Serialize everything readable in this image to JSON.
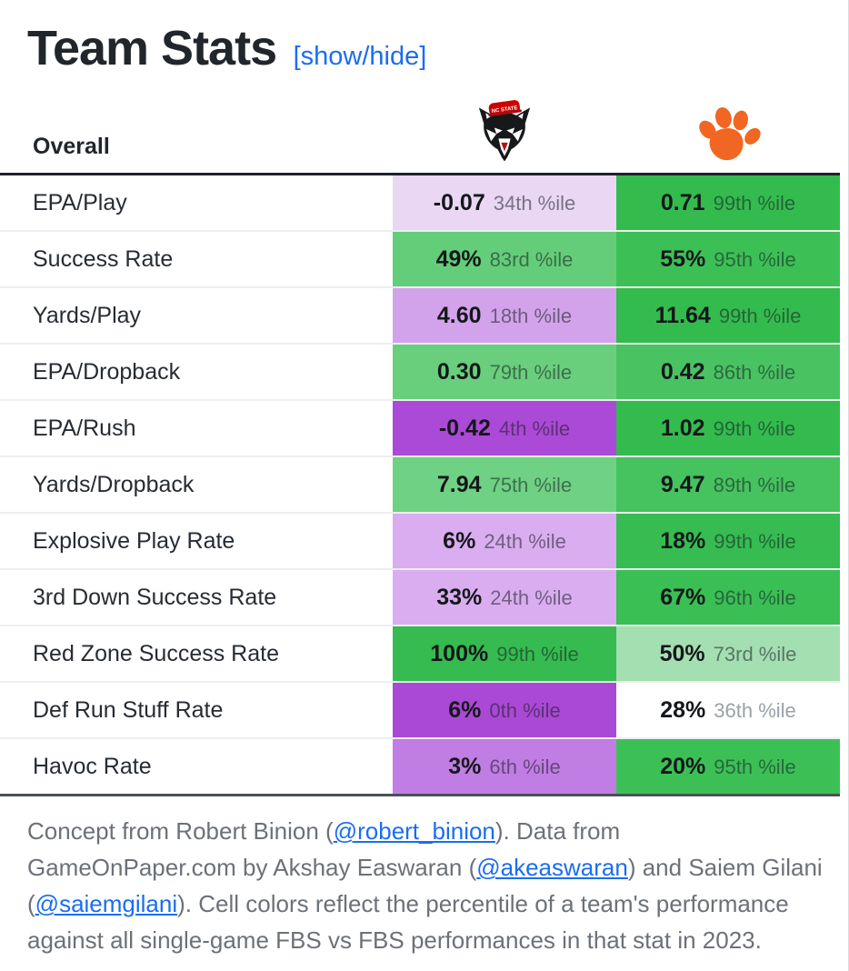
{
  "title": {
    "text": "Team Stats",
    "toggle": "[show/hide]"
  },
  "colors": {
    "link_blue": "#1a6df2",
    "header_border": "#1e2228",
    "footer_gray": "#6c7178",
    "clemson_orange": "#f16622",
    "ncstate_red": "#cc0000"
  },
  "table": {
    "header": {
      "label": "Overall",
      "team1_logo": "nc-state-wolfpack",
      "team2_logo": "clemson-tiger-paw"
    },
    "rows": [
      {
        "label": "EPA/Play",
        "team1": {
          "value": "-0.07",
          "pct": "34th %ile",
          "bg": "#e9d7f4"
        },
        "team2": {
          "value": "0.71",
          "pct": "99th %ile",
          "bg": "#34bb4e"
        }
      },
      {
        "label": "Success Rate",
        "team1": {
          "value": "49%",
          "pct": "83rd %ile",
          "bg": "#64cd79"
        },
        "team2": {
          "value": "55%",
          "pct": "95th %ile",
          "bg": "#3cc056"
        }
      },
      {
        "label": "Yards/Play",
        "team1": {
          "value": "4.60",
          "pct": "18th %ile",
          "bg": "#d2a3ea"
        },
        "team2": {
          "value": "11.64",
          "pct": "99th %ile",
          "bg": "#34bb4e"
        }
      },
      {
        "label": "EPA/Dropback",
        "team1": {
          "value": "0.30",
          "pct": "79th %ile",
          "bg": "#69cf7d"
        },
        "team2": {
          "value": "0.42",
          "pct": "86th %ile",
          "bg": "#49c362"
        }
      },
      {
        "label": "EPA/Rush",
        "team1": {
          "value": "-0.42",
          "pct": "4th %ile",
          "bg": "#ab4ad7"
        },
        "team2": {
          "value": "1.02",
          "pct": "99th %ile",
          "bg": "#34bb4e"
        }
      },
      {
        "label": "Yards/Dropback",
        "team1": {
          "value": "7.94",
          "pct": "75th %ile",
          "bg": "#6fd183"
        },
        "team2": {
          "value": "9.47",
          "pct": "89th %ile",
          "bg": "#46c25f"
        }
      },
      {
        "label": "Explosive Play Rate",
        "team1": {
          "value": "6%",
          "pct": "24th %ile",
          "bg": "#d9adef"
        },
        "team2": {
          "value": "18%",
          "pct": "99th %ile",
          "bg": "#36bc50"
        }
      },
      {
        "label": "3rd Down Success Rate",
        "team1": {
          "value": "33%",
          "pct": "24th %ile",
          "bg": "#d9adef"
        },
        "team2": {
          "value": "67%",
          "pct": "96th %ile",
          "bg": "#3abf54"
        }
      },
      {
        "label": "Red Zone Success Rate",
        "team1": {
          "value": "100%",
          "pct": "99th %ile",
          "bg": "#35bb4f"
        },
        "team2": {
          "value": "50%",
          "pct": "73rd %ile",
          "bg": "#a4dfb1"
        }
      },
      {
        "label": "Def Run Stuff Rate",
        "team1": {
          "value": "6%",
          "pct": "0th %ile",
          "bg": "#aa49d5"
        },
        "team2": {
          "value": "28%",
          "pct": "36th %ile",
          "bg": "#ffffff"
        }
      },
      {
        "label": "Havoc Rate",
        "team1": {
          "value": "3%",
          "pct": "6th %ile",
          "bg": "#c07de3"
        },
        "team2": {
          "value": "20%",
          "pct": "95th %ile",
          "bg": "#3cc056"
        }
      }
    ]
  },
  "footer": {
    "segments": [
      {
        "t": "Concept from Robert Binion ("
      },
      {
        "t": "@robert_binion",
        "link": true
      },
      {
        "t": "). Data from GameOnPaper.com by Akshay Easwaran ("
      },
      {
        "t": "@akeaswaran",
        "link": true
      },
      {
        "t": ") and Saiem Gilani ("
      },
      {
        "t": "@saiemgilani",
        "link": true
      },
      {
        "t": "). Cell colors reflect the percentile of a team's performance against all single-game FBS vs FBS performances in that stat in 2023."
      }
    ]
  }
}
